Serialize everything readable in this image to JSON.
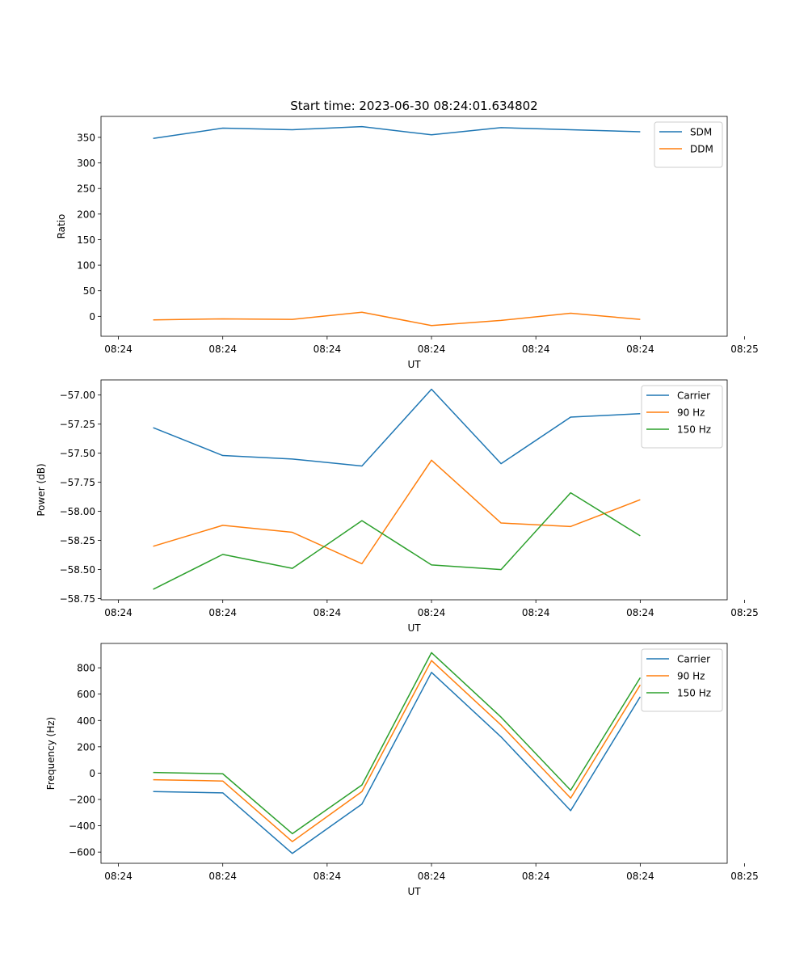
{
  "figure": {
    "title": "Start time: 2023-06-30 08:24:01.634802"
  },
  "colors": {
    "blue": "#1f77b4",
    "orange": "#ff7f0e",
    "green": "#2ca02c"
  },
  "chart_data": [
    {
      "type": "line",
      "title": "Start time: 2023-06-30 08:24:01.634802",
      "xlabel": "UT",
      "ylabel": "Ratio",
      "xlim": [
        -0.75,
        8.25
      ],
      "x": [
        0,
        1,
        2,
        3,
        4,
        5,
        6,
        7
      ],
      "x_ticks": [
        -0.5,
        1,
        2.5,
        4,
        5.5,
        7,
        8.5
      ],
      "x_tick_labels": [
        "08:24",
        "08:24",
        "08:24",
        "08:24",
        "08:24",
        "08:24",
        "08:25"
      ],
      "ylim": [
        -39,
        391
      ],
      "y_ticks": [
        0,
        50,
        100,
        150,
        200,
        250,
        300,
        350
      ],
      "y_tick_labels": [
        "0",
        "50",
        "100",
        "150",
        "200",
        "250",
        "300",
        "350"
      ],
      "legend": "top-right",
      "series": [
        {
          "name": "SDM",
          "color": "blue",
          "values": [
            348,
            368,
            365,
            371,
            355,
            369,
            365,
            361
          ]
        },
        {
          "name": "DDM",
          "color": "orange",
          "values": [
            -7,
            -5,
            -6,
            8,
            -18,
            -8,
            6,
            -6
          ]
        }
      ]
    },
    {
      "type": "line",
      "title": "",
      "xlabel": "UT",
      "ylabel": "Power (dB)",
      "xlim": [
        -0.75,
        8.25
      ],
      "x": [
        0,
        1,
        2,
        3,
        4,
        5,
        6,
        7
      ],
      "x_ticks": [
        -0.5,
        1,
        2.5,
        4,
        5.5,
        7,
        8.5
      ],
      "x_tick_labels": [
        "08:24",
        "08:24",
        "08:24",
        "08:24",
        "08:24",
        "08:24",
        "08:25"
      ],
      "ylim": [
        -58.76,
        -56.87
      ],
      "y_ticks": [
        -58.75,
        -58.5,
        -58.25,
        -58.0,
        -57.75,
        -57.5,
        -57.25,
        -57.0
      ],
      "y_tick_labels": [
        "−58.75",
        "−58.50",
        "−58.25",
        "−58.00",
        "−57.75",
        "−57.50",
        "−57.25",
        "−57.00"
      ],
      "legend": "top-right",
      "series": [
        {
          "name": "Carrier",
          "color": "blue",
          "values": [
            -57.28,
            -57.52,
            -57.55,
            -57.61,
            -56.95,
            -57.59,
            -57.19,
            -57.16
          ]
        },
        {
          "name": "90 Hz",
          "color": "orange",
          "values": [
            -58.3,
            -58.12,
            -58.18,
            -58.45,
            -57.56,
            -58.1,
            -58.13,
            -57.9
          ]
        },
        {
          "name": "150 Hz",
          "color": "green",
          "values": [
            -58.67,
            -58.37,
            -58.49,
            -58.08,
            -58.46,
            -58.5,
            -57.84,
            -58.21
          ]
        }
      ]
    },
    {
      "type": "line",
      "title": "",
      "xlabel": "UT",
      "ylabel": "Frequency (Hz)",
      "xlim": [
        -0.75,
        8.25
      ],
      "x": [
        0,
        1,
        2,
        3,
        4,
        5,
        6,
        7
      ],
      "x_ticks": [
        -0.5,
        1,
        2.5,
        4,
        5.5,
        7,
        8.5
      ],
      "x_tick_labels": [
        "08:24",
        "08:24",
        "08:24",
        "08:24",
        "08:24",
        "08:24",
        "08:25"
      ],
      "ylim": [
        -685,
        985
      ],
      "y_ticks": [
        -600,
        -400,
        -200,
        0,
        200,
        400,
        600,
        800
      ],
      "y_tick_labels": [
        "−600",
        "−400",
        "−200",
        "0",
        "200",
        "400",
        "600",
        "800"
      ],
      "legend": "top-right",
      "series": [
        {
          "name": "Carrier",
          "color": "blue",
          "values": [
            -140,
            -150,
            -610,
            -235,
            765,
            275,
            -285,
            580
          ]
        },
        {
          "name": "90 Hz",
          "color": "orange",
          "values": [
            -50,
            -60,
            -520,
            -140,
            855,
            365,
            -190,
            670
          ]
        },
        {
          "name": "150 Hz",
          "color": "green",
          "values": [
            5,
            -5,
            -460,
            -90,
            915,
            425,
            -130,
            725
          ]
        }
      ]
    }
  ]
}
